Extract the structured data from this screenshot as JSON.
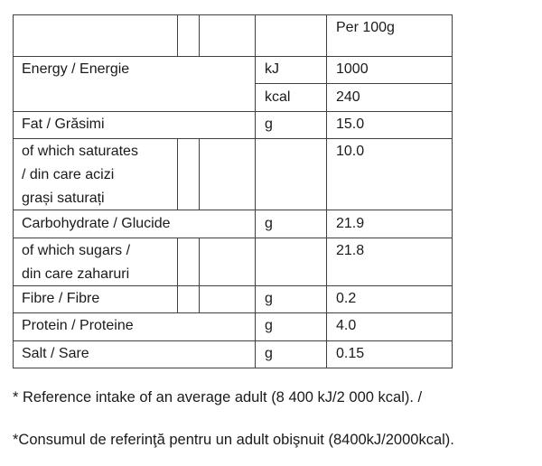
{
  "table": {
    "header": {
      "per": "Per 100g"
    },
    "rows": [
      {
        "label": "Energy / Energie",
        "unit": "kJ",
        "value": "1000",
        "unit2": "kcal",
        "value2": "240"
      },
      {
        "label": "Fat / Grăsimi",
        "unit": "g",
        "value": "15.0"
      },
      {
        "label_lines": [
          "of which saturates",
          "/ din care acizi",
          "grași saturați"
        ],
        "unit": "",
        "value": "10.0"
      },
      {
        "label": "Carbohydrate / Glucide",
        "unit": "g",
        "value": "21.9"
      },
      {
        "label_lines": [
          "of which sugars /",
          "din care zaharuri"
        ],
        "unit": "",
        "value": "21.8"
      },
      {
        "label": "Fibre / Fibre",
        "unit": "g",
        "value": "0.2"
      },
      {
        "label": "Protein / Proteine",
        "unit": "g",
        "value": "4.0"
      },
      {
        "label": "Salt / Sare",
        "unit": "g",
        "value": "0.15"
      }
    ]
  },
  "footnotes": [
    "* Reference intake of an average adult (8 400 kJ/2 000 kcal). /",
    "*Consumul de referinţă pentru un adult obişnuit (8400kJ/2000kcal)."
  ]
}
